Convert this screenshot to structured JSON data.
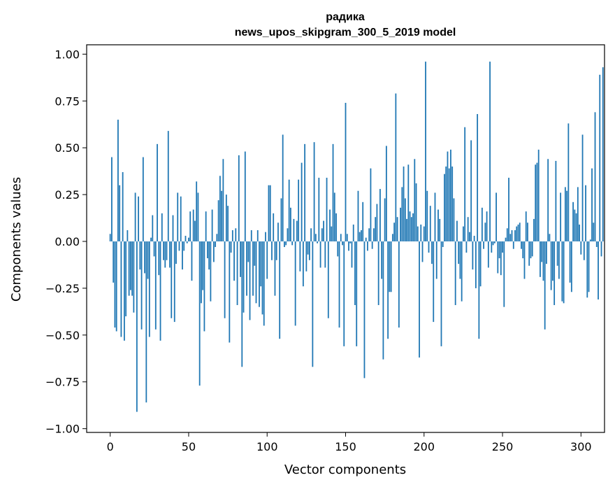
{
  "chart_data": {
    "type": "bar",
    "title": "радика",
    "subtitle": "news_upos_skipgram_300_5_2019 model",
    "xlabel": "Vector components",
    "ylabel": "Components values",
    "xlim": [
      -15,
      315
    ],
    "ylim": [
      -1.02,
      1.05
    ],
    "xticks": [
      0,
      50,
      100,
      150,
      200,
      250,
      300
    ],
    "yticks": [
      -1.0,
      -0.75,
      -0.5,
      -0.25,
      0.0,
      0.25,
      0.5,
      0.75,
      1.0
    ],
    "xtick_labels": [
      "0",
      "50",
      "100",
      "150",
      "200",
      "250",
      "300"
    ],
    "ytick_labels": [
      "−1.00",
      "−0.75",
      "−0.50",
      "−0.25",
      "0.00",
      "0.25",
      "0.50",
      "0.75",
      "1.00"
    ],
    "bar_color": "#1f77b4",
    "grid": false,
    "values": [
      0.04,
      0.45,
      -0.22,
      -0.46,
      -0.48,
      0.65,
      0.3,
      -0.51,
      0.37,
      -0.53,
      -0.4,
      0.06,
      -0.29,
      -0.26,
      -0.29,
      -0.38,
      0.26,
      -0.91,
      0.24,
      -0.15,
      -0.47,
      0.45,
      -0.17,
      -0.86,
      -0.2,
      -0.51,
      0.02,
      0.14,
      -0.08,
      -0.47,
      0.52,
      -0.18,
      -0.53,
      0.15,
      -0.1,
      -0.14,
      -0.1,
      0.59,
      -0.14,
      -0.41,
      0.14,
      -0.43,
      -0.12,
      0.26,
      -0.05,
      0.24,
      -0.15,
      -0.05,
      0.03,
      -0.01,
      0.02,
      0.16,
      -0.21,
      0.17,
      0.11,
      0.32,
      0.26,
      -0.77,
      -0.33,
      -0.26,
      -0.48,
      0.16,
      -0.09,
      -0.15,
      -0.32,
      0.17,
      -0.11,
      -0.03,
      0.04,
      0.22,
      0.35,
      0.27,
      0.44,
      -0.41,
      0.25,
      0.19,
      -0.54,
      -0.06,
      0.06,
      -0.21,
      0.07,
      -0.34,
      0.46,
      -0.19,
      -0.67,
      -0.38,
      0.48,
      -0.29,
      -0.11,
      -0.42,
      0.06,
      -0.29,
      -0.13,
      -0.33,
      0.06,
      -0.35,
      -0.24,
      -0.39,
      -0.45,
      0.05,
      -0.2,
      0.3,
      0.3,
      -0.1,
      0.15,
      -0.29,
      -0.1,
      0.1,
      -0.52,
      0.23,
      0.57,
      -0.03,
      -0.02,
      0.07,
      0.33,
      0.18,
      -0.02,
      0.12,
      -0.45,
      0.11,
      0.33,
      -0.16,
      0.42,
      -0.24,
      0.52,
      -0.16,
      -0.07,
      -0.1,
      0.07,
      -0.67,
      0.53,
      0.04,
      -0.01,
      0.34,
      -0.14,
      0.07,
      0.11,
      -0.14,
      0.34,
      -0.41,
      0.17,
      0.08,
      0.52,
      0.26,
      0.15,
      -0.08,
      -0.46,
      0.04,
      -0.02,
      -0.56,
      0.74,
      0.04,
      -0.05,
      -0.01,
      -0.14,
      0.09,
      -0.34,
      -0.56,
      0.27,
      0.05,
      0.06,
      0.21,
      -0.73,
      0.02,
      -0.05,
      0.07,
      0.39,
      -0.04,
      0.07,
      0.13,
      0.2,
      -0.34,
      0.28,
      -0.2,
      -0.63,
      0.23,
      0.51,
      -0.52,
      -0.27,
      -0.27,
      0.04,
      0.1,
      0.79,
      0.13,
      -0.46,
      0.18,
      0.29,
      0.4,
      0.23,
      0.12,
      0.41,
      0.16,
      0.13,
      0.15,
      0.44,
      0.31,
      0.08,
      -0.62,
      0.09,
      -0.11,
      0.08,
      0.96,
      0.27,
      -0.06,
      0.19,
      -0.12,
      -0.43,
      0.26,
      -0.2,
      0.17,
      0.12,
      -0.56,
      -0.03,
      0.36,
      0.4,
      0.48,
      0.39,
      0.49,
      0.4,
      0.23,
      -0.34,
      0.11,
      -0.12,
      -0.2,
      -0.32,
      0.08,
      0.61,
      -0.06,
      0.13,
      0.05,
      0.54,
      -0.15,
      0.03,
      -0.25,
      0.68,
      -0.52,
      -0.24,
      0.18,
      -0.04,
      0.1,
      0.16,
      -0.14,
      0.96,
      -0.06,
      -0.02,
      -0.01,
      0.26,
      -0.17,
      -0.09,
      -0.18,
      -0.06,
      -0.35,
      0.02,
      0.07,
      0.34,
      0.04,
      0.06,
      -0.04,
      0.06,
      0.08,
      0.09,
      0.1,
      -0.04,
      -0.09,
      -0.2,
      0.16,
      0.1,
      -0.13,
      -0.09,
      -0.08,
      0.12,
      0.41,
      0.42,
      0.49,
      -0.19,
      -0.11,
      -0.21,
      -0.47,
      -0.12,
      0.44,
      0.04,
      -0.26,
      -0.21,
      -0.34,
      0.43,
      -0.13,
      -0.2,
      0.26,
      -0.32,
      -0.33,
      0.29,
      0.27,
      0.63,
      -0.22,
      -0.27,
      0.21,
      0.17,
      0.15,
      0.29,
      0.09,
      -0.07,
      0.57,
      -0.1,
      0.3,
      -0.3,
      -0.27,
      0.01,
      0.39,
      0.1,
      0.69,
      -0.03,
      -0.31,
      0.89,
      -0.08,
      0.93
    ]
  }
}
